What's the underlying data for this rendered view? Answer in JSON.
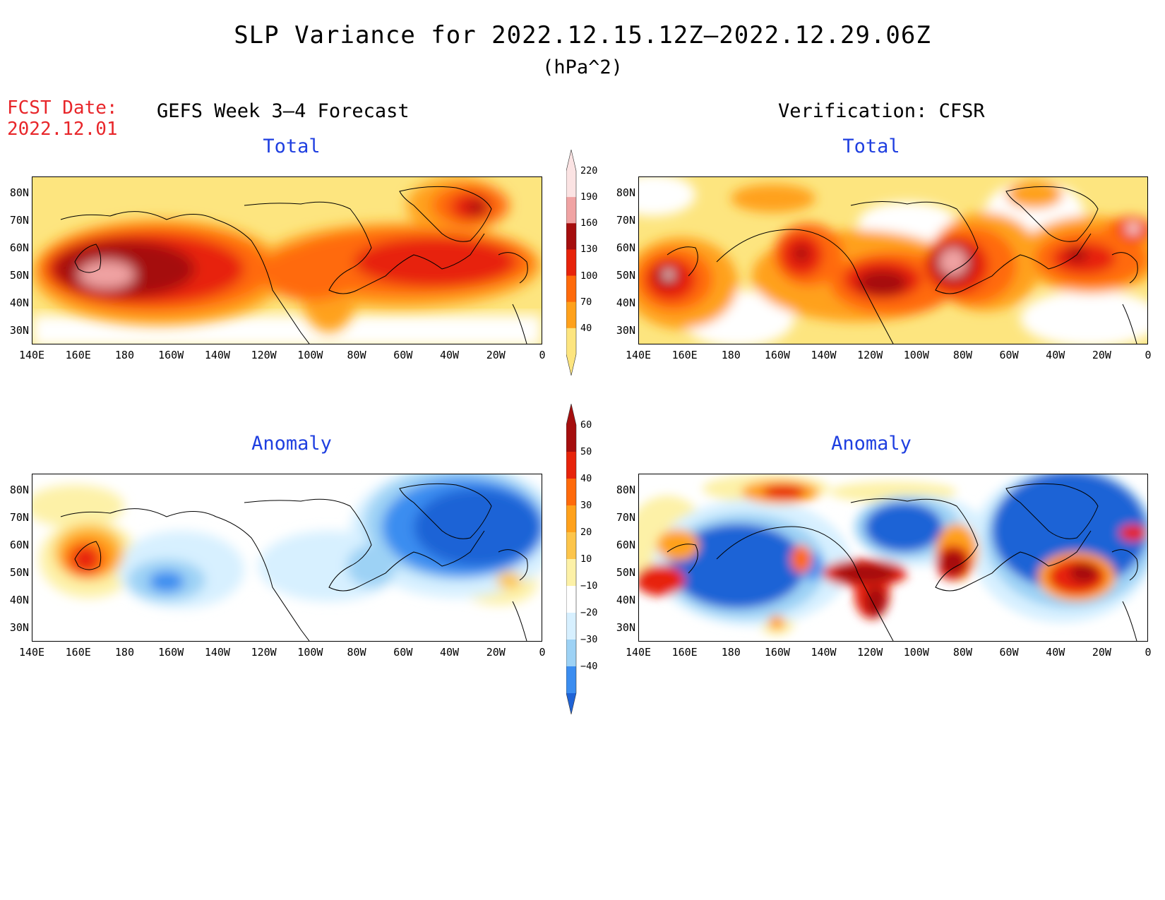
{
  "title": "SLP Variance for 2022.12.15.12Z–2022.12.29.06Z",
  "units": "(hPa^2)",
  "fcst_date": {
    "label": "FCST Date:",
    "value": "2022.12.01"
  },
  "left_header": "GEFS Week 3–4 Forecast",
  "right_header": "Verification: CFSR",
  "panels": {
    "fcst_total": {
      "title": "Total"
    },
    "verif_total": {
      "title": "Total"
    },
    "fcst_anom": {
      "title": "Anomaly"
    },
    "verif_anom": {
      "title": "Anomaly"
    }
  },
  "lat_labels": [
    "80N",
    "70N",
    "60N",
    "50N",
    "40N",
    "30N"
  ],
  "lon_labels": [
    "140E",
    "160E",
    "180",
    "160W",
    "140W",
    "120W",
    "100W",
    "80W",
    "60W",
    "40W",
    "20W",
    "0"
  ],
  "total_colorbar": {
    "levels": [
      "40",
      "70",
      "100",
      "130",
      "160",
      "190",
      "220"
    ],
    "colors": [
      "#fde57f",
      "#ffa11b",
      "#ff6a0a",
      "#e7230a",
      "#a50e0e",
      "#f0a3a3",
      "#fbe3e3"
    ]
  },
  "anomaly_colorbar": {
    "levels": [
      "60",
      "50",
      "40",
      "30",
      "20",
      "10",
      "−10",
      "−20",
      "−30",
      "−40"
    ],
    "colors": [
      "#a50e0e",
      "#e7230a",
      "#ff6a0a",
      "#ffa11b",
      "#fdc54a",
      "#fdf1a7",
      "#ffffff",
      "#d7f0ff",
      "#9dd2f5",
      "#3b8df0",
      "#1f63d6"
    ]
  },
  "chart_data": [
    {
      "type": "heatmap",
      "title": "Total",
      "panel": "GEFS Week 3–4 Forecast",
      "variable": "SLP variance (hPa^2)",
      "xlim": [
        "140E",
        "0"
      ],
      "ylim": [
        "25N",
        "85N"
      ],
      "features": [
        {
          "region": "North Pacific near 50N 170E",
          "peak": 220
        },
        {
          "region": "Southern Greenland near 70N 40W",
          "peak": 160
        },
        {
          "region": "Labrador / North Atlantic near 50N 60W",
          "peak": 160
        }
      ]
    },
    {
      "type": "heatmap",
      "title": "Total",
      "panel": "Verification: CFSR",
      "variable": "SLP variance (hPa^2)",
      "xlim": [
        "140E",
        "0"
      ],
      "ylim": [
        "25N",
        "85N"
      ],
      "features": [
        {
          "region": "Great Lakes near 50N 80W",
          "peak": 220
        },
        {
          "region": "Kamchatka near 45N 150E",
          "peak": 220
        },
        {
          "region": "Gulf of Alaska near 50N 145W",
          "peak": 190
        },
        {
          "region": "Western US near 45N 115W",
          "peak": 190
        },
        {
          "region": "North Atlantic near 50N 25W",
          "peak": 160
        },
        {
          "region": "Norwegian Sea near 60N 5W",
          "peak": 220
        }
      ]
    },
    {
      "type": "heatmap",
      "title": "Anomaly",
      "panel": "GEFS Week 3–4 Forecast",
      "variable": "SLP variance anomaly (hPa^2)",
      "xlim": [
        "140E",
        "0"
      ],
      "ylim": [
        "25N",
        "85N"
      ],
      "features": [
        {
          "region": "Kamchatka near 55N 160E",
          "peak": 50
        },
        {
          "region": "North Pacific near 45N 165W",
          "peak": -30
        },
        {
          "region": "Greenland / North Atlantic",
          "peak": -40
        }
      ]
    },
    {
      "type": "heatmap",
      "title": "Anomaly",
      "panel": "Verification: CFSR",
      "variable": "SLP variance anomaly (hPa^2)",
      "xlim": [
        "140E",
        "0"
      ],
      "ylim": [
        "25N",
        "85N"
      ],
      "features": [
        {
          "region": "Great Lakes near 50N 80W",
          "peak": 60
        },
        {
          "region": "Western US near 45N 115W",
          "peak": 60
        },
        {
          "region": "North Atlantic near 50N 25W",
          "peak": 50
        },
        {
          "region": "Arctic Ocean near 80N 160W",
          "peak": 50
        },
        {
          "region": "North Pacific near 45N 170E",
          "peak": -40
        },
        {
          "region": "Hudson Bay near 60N 95W",
          "peak": -40
        },
        {
          "region": "Greenland / North Atlantic near 65N 40W",
          "peak": -40
        }
      ]
    }
  ]
}
